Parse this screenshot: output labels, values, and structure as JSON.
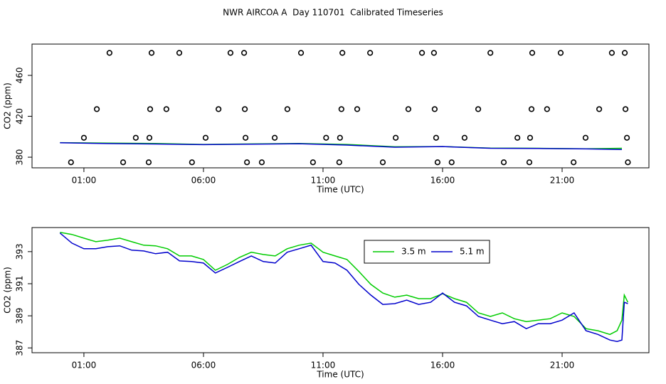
{
  "title": "NWR AIRCOA A  Day 110701  Calibrated Timeseries",
  "chart_data": [
    {
      "type": "line",
      "xlabel": "Time (UTC)",
      "ylabel": "CO2 (ppm)",
      "xlim": [
        -1.17,
        24.63
      ],
      "ylim": [
        369.6,
        490.6
      ],
      "xticks": [
        {
          "value": 1,
          "label": "01:00"
        },
        {
          "value": 6,
          "label": "06:00"
        },
        {
          "value": 11,
          "label": "11:00"
        },
        {
          "value": 16,
          "label": "16:00"
        },
        {
          "value": 21,
          "label": "21:00"
        }
      ],
      "yticks": [
        380,
        420,
        460
      ],
      "x": [
        0,
        2,
        4,
        6,
        8,
        10,
        12,
        14,
        16,
        18,
        20,
        22,
        23.5
      ],
      "series": [
        {
          "color": "#00cc00",
          "values": [
            394.2,
            393.71,
            393.36,
            392.51,
            392.96,
            393.4,
            392.51,
            390.16,
            390.38,
            388.96,
            388.73,
            388.2,
            388.73
          ]
        },
        {
          "color": "#0000cc",
          "values": [
            394.16,
            393.31,
            392.87,
            392.29,
            392.73,
            393.18,
            391.84,
            389.76,
            390.42,
            388.73,
            388.51,
            388.07,
            387.49
          ]
        }
      ],
      "points": {
        "color": "#000000",
        "x": [
          2.07,
          3.83,
          4.99,
          7.13,
          7.7,
          10.08,
          11.81,
          12.97,
          15.14,
          15.64,
          18.0,
          19.75,
          20.94,
          23.08,
          23.62,
          1.54,
          3.77,
          4.45,
          6.63,
          7.73,
          9.51,
          11.77,
          12.43,
          14.57,
          15.67,
          17.49,
          19.72,
          20.37,
          22.55,
          23.65,
          1.0,
          3.17,
          3.74,
          6.09,
          7.76,
          8.98,
          11.13,
          11.71,
          14.04,
          15.73,
          16.92,
          19.13,
          19.66,
          21.98,
          23.71,
          0.46,
          2.64,
          3.71,
          5.52,
          7.82,
          8.44,
          10.58,
          11.68,
          13.5,
          15.79,
          16.38,
          18.56,
          19.63,
          21.48,
          23.75
        ],
        "y": [
          482,
          482,
          482,
          482,
          482,
          482,
          482,
          482,
          482,
          482,
          482,
          482,
          482,
          482,
          482,
          427,
          427,
          427,
          427,
          427,
          427,
          427,
          427,
          427,
          427,
          427,
          427,
          427,
          427,
          427,
          399,
          399,
          399,
          399,
          399,
          399,
          399,
          399,
          399,
          399,
          399,
          399,
          399,
          399,
          399,
          375,
          375,
          375,
          375,
          375,
          375,
          375,
          375,
          375,
          375,
          375,
          375,
          375,
          375,
          375
        ]
      }
    },
    {
      "type": "line",
      "xlabel": "Time (UTC)",
      "ylabel": "CO2 (ppm)",
      "xlim": [
        -1.17,
        24.63
      ],
      "ylim": [
        386.7,
        394.5
      ],
      "xticks": [
        {
          "value": 1,
          "label": "01:00"
        },
        {
          "value": 6,
          "label": "06:00"
        },
        {
          "value": 11,
          "label": "11:00"
        },
        {
          "value": 16,
          "label": "16:00"
        },
        {
          "value": 21,
          "label": "21:00"
        }
      ],
      "yticks": [
        387,
        389,
        391,
        393
      ],
      "legend": "top",
      "x": [
        0,
        0.5,
        1,
        1.5,
        2,
        2.5,
        3,
        3.5,
        4,
        4.5,
        5,
        5.5,
        6,
        6.5,
        7,
        7.5,
        8,
        8.5,
        9,
        9.5,
        10,
        10.5,
        11,
        11.5,
        12,
        12.5,
        13,
        13.5,
        14,
        14.5,
        15,
        15.5,
        16,
        16.5,
        17,
        17.5,
        18,
        18.5,
        19,
        19.5,
        20,
        20.5,
        21,
        21.5,
        22,
        22.5,
        23,
        23.3,
        23.5,
        23.6,
        23.75
      ],
      "series": [
        {
          "name": "3.5 m",
          "color": "#00cc00",
          "values": [
            394.2,
            394.07,
            393.84,
            393.62,
            393.71,
            393.84,
            393.62,
            393.4,
            393.36,
            393.18,
            392.73,
            392.73,
            392.51,
            391.84,
            392.2,
            392.64,
            392.96,
            392.82,
            392.73,
            393.18,
            393.4,
            393.53,
            392.96,
            392.73,
            392.51,
            391.76,
            390.96,
            390.42,
            390.16,
            390.29,
            390.07,
            390.07,
            390.38,
            390.07,
            389.84,
            389.18,
            388.96,
            389.18,
            388.82,
            388.64,
            388.73,
            388.82,
            389.18,
            388.96,
            388.2,
            388.07,
            387.84,
            388.07,
            388.73,
            390.29,
            389.84
          ]
        },
        {
          "name": "5.1 m",
          "color": "#0000cc",
          "values": [
            394.16,
            393.53,
            393.18,
            393.18,
            393.31,
            393.36,
            393.09,
            393.04,
            392.87,
            392.96,
            392.42,
            392.38,
            392.29,
            391.67,
            392.02,
            392.38,
            392.73,
            392.38,
            392.29,
            392.96,
            393.18,
            393.4,
            392.38,
            392.29,
            391.84,
            390.96,
            390.29,
            389.71,
            389.76,
            389.98,
            389.71,
            389.84,
            390.42,
            389.84,
            389.62,
            388.96,
            388.73,
            388.51,
            388.64,
            388.2,
            388.51,
            388.51,
            388.73,
            389.18,
            388.07,
            387.84,
            387.49,
            387.4,
            387.49,
            389.84,
            389.76
          ]
        }
      ]
    }
  ]
}
